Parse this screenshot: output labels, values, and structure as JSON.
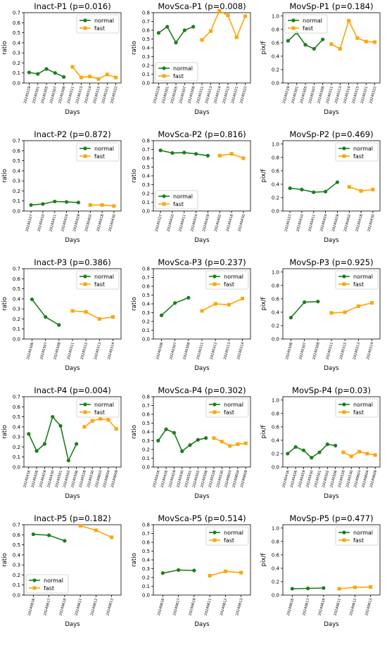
{
  "colors": {
    "normal": "#1a7f1a",
    "fast": "#ffa500",
    "axis": "#000000"
  },
  "chart_data": [
    {
      "type": "line",
      "title": "Inact-P1 (p=0.016)",
      "xlabel": "Days",
      "ylabel": "ratio",
      "ylim": [
        0,
        0.7
      ],
      "yticks": [
        "0.0",
        "0.1",
        "0.2",
        "0.3",
        "0.4",
        "0.5",
        "0.6",
        "0.7"
      ],
      "x": [
        "20240229",
        "20240301",
        "20240305",
        "20240307",
        "20240308",
        "20240311",
        "20240313",
        "20240314",
        "20240315",
        "20240321",
        "20240322"
      ],
      "legend": "top-right",
      "series": [
        {
          "name": "normal",
          "values": [
            0.105,
            0.09,
            0.14,
            0.1,
            0.06,
            null,
            null,
            null,
            null,
            null,
            null
          ]
        },
        {
          "name": "fast",
          "values": [
            null,
            null,
            null,
            null,
            null,
            0.16,
            0.055,
            0.065,
            0.04,
            0.085,
            0.055
          ]
        }
      ]
    },
    {
      "type": "line",
      "title": "MovSca-P1 (p=0.008)",
      "xlabel": "Days",
      "ylabel": "ratio",
      "ylim": [
        0,
        0.8
      ],
      "yticks": [
        "0.0",
        "0.1",
        "0.2",
        "0.3",
        "0.4",
        "0.5",
        "0.6",
        "0.7",
        "0.8"
      ],
      "x": [
        "20240229",
        "20240301",
        "20240305",
        "20240307",
        "20240308",
        "20240311",
        "20240313",
        "20240314",
        "20240315",
        "20240321",
        "20240322"
      ],
      "legend": "bottom-left",
      "series": [
        {
          "name": "normal",
          "values": [
            0.57,
            0.64,
            0.46,
            0.6,
            0.64,
            null,
            null,
            null,
            null,
            null,
            null
          ]
        },
        {
          "name": "fast",
          "values": [
            null,
            null,
            null,
            null,
            null,
            0.49,
            0.59,
            0.82,
            0.77,
            0.52,
            0.76
          ]
        }
      ]
    },
    {
      "type": "line",
      "title": "MovSp-P1 (p=0.184)",
      "xlabel": "Days",
      "ylabel": "pix/f",
      "ylim": [
        0,
        1.05
      ],
      "yticks": [
        "0.0",
        "0.2",
        "0.4",
        "0.6",
        "0.8",
        "1.0"
      ],
      "x": [
        "20240229",
        "20240301",
        "20240305",
        "20240307",
        "20240308",
        "20240311",
        "20240313",
        "20240314",
        "20240315",
        "20240321",
        "20240322"
      ],
      "legend": "top-left",
      "series": [
        {
          "name": "normal",
          "values": [
            0.63,
            0.75,
            0.57,
            0.51,
            0.65,
            null,
            null,
            null,
            null,
            null,
            null
          ]
        },
        {
          "name": "fast",
          "values": [
            null,
            null,
            null,
            null,
            null,
            0.58,
            0.51,
            0.93,
            0.67,
            0.62,
            0.61
          ]
        }
      ]
    },
    {
      "type": "line",
      "title": "Inact-P2 (p=0.872)",
      "xlabel": "Days",
      "ylabel": "ratio",
      "ylim": [
        0,
        0.7
      ],
      "yticks": [
        "0.0",
        "0.1",
        "0.2",
        "0.3",
        "0.4",
        "0.5",
        "0.6",
        "0.7"
      ],
      "x": [
        "20240327",
        "20240410",
        "20240411",
        "20240424",
        "20240429",
        "20240402",
        "20240418",
        "20240430"
      ],
      "legend": "top-right",
      "series": [
        {
          "name": "normal",
          "values": [
            0.06,
            0.07,
            0.095,
            0.09,
            0.085,
            null,
            null,
            null
          ]
        },
        {
          "name": "fast",
          "values": [
            null,
            null,
            null,
            null,
            null,
            0.06,
            0.06,
            0.05
          ]
        }
      ]
    },
    {
      "type": "line",
      "title": "MovSca-P2 (p=0.816)",
      "xlabel": "Days",
      "ylabel": "ratio",
      "ylim": [
        0,
        0.8
      ],
      "yticks": [
        "0.0",
        "0.1",
        "0.2",
        "0.3",
        "0.4",
        "0.5",
        "0.6",
        "0.7",
        "0.8"
      ],
      "x": [
        "20240327",
        "20240410",
        "20240411",
        "20240424",
        "20240429",
        "20240402",
        "20240418",
        "20240430"
      ],
      "legend": "bottom-left",
      "series": [
        {
          "name": "normal",
          "values": [
            0.69,
            0.66,
            0.665,
            0.65,
            0.63,
            null,
            null,
            null
          ]
        },
        {
          "name": "fast",
          "values": [
            null,
            null,
            null,
            null,
            null,
            0.63,
            0.65,
            0.6
          ]
        }
      ]
    },
    {
      "type": "line",
      "title": "MovSp-P2 (p=0.469)",
      "xlabel": "Days",
      "ylabel": "pix/f",
      "ylim": [
        0,
        1.05
      ],
      "yticks": [
        "0.0",
        "0.2",
        "0.4",
        "0.6",
        "0.8",
        "1.0"
      ],
      "x": [
        "20240327",
        "20240410",
        "20240411",
        "20240424",
        "20240429",
        "20240402",
        "20240418",
        "20240430"
      ],
      "legend": "top-right",
      "series": [
        {
          "name": "normal",
          "values": [
            0.34,
            0.32,
            0.28,
            0.29,
            0.43,
            null,
            null,
            null
          ]
        },
        {
          "name": "fast",
          "values": [
            null,
            null,
            null,
            null,
            null,
            0.36,
            0.3,
            0.32
          ]
        }
      ]
    },
    {
      "type": "line",
      "title": "Inact-P3 (p=0.386)",
      "xlabel": "Days",
      "ylabel": "ratio",
      "ylim": [
        0,
        0.7
      ],
      "yticks": [
        "0.0",
        "0.1",
        "0.2",
        "0.3",
        "0.4",
        "0.5",
        "0.6",
        "0.7"
      ],
      "x": [
        "20240306",
        "20240307",
        "20240308",
        "20240311",
        "20240312",
        "20240313",
        "20240314"
      ],
      "legend": "top-right",
      "series": [
        {
          "name": "normal",
          "values": [
            0.395,
            0.22,
            0.14,
            null,
            null,
            null,
            null
          ]
        },
        {
          "name": "fast",
          "values": [
            null,
            null,
            null,
            0.28,
            0.27,
            0.2,
            0.22
          ]
        }
      ]
    },
    {
      "type": "line",
      "title": "MovSca-P3 (p=0.237)",
      "xlabel": "Days",
      "ylabel": "ratio",
      "ylim": [
        0,
        0.8
      ],
      "yticks": [
        "0.0",
        "0.1",
        "0.2",
        "0.3",
        "0.4",
        "0.5",
        "0.6",
        "0.7",
        "0.8"
      ],
      "x": [
        "20240306",
        "20240307",
        "20240308",
        "20240311",
        "20240312",
        "20240313",
        "20240314"
      ],
      "legend": "top-right",
      "series": [
        {
          "name": "normal",
          "values": [
            0.27,
            0.41,
            0.47,
            null,
            null,
            null,
            null
          ]
        },
        {
          "name": "fast",
          "values": [
            null,
            null,
            null,
            0.32,
            0.4,
            0.39,
            0.46
          ]
        }
      ]
    },
    {
      "type": "line",
      "title": "MovSp-P3 (p=0.925)",
      "xlabel": "Days",
      "ylabel": "pix/f",
      "ylim": [
        0,
        1.05
      ],
      "yticks": [
        "0.0",
        "0.2",
        "0.4",
        "0.6",
        "0.8",
        "1.0"
      ],
      "x": [
        "20240306",
        "20240307",
        "20240308",
        "20240311",
        "20240312",
        "20240313",
        "20240314"
      ],
      "legend": "top-right",
      "series": [
        {
          "name": "normal",
          "values": [
            0.32,
            0.55,
            0.56,
            null,
            null,
            null,
            null
          ]
        },
        {
          "name": "fast",
          "values": [
            null,
            null,
            null,
            0.39,
            0.4,
            0.49,
            0.54
          ]
        }
      ]
    },
    {
      "type": "line",
      "title": "Inact-P4 (p=0.004)",
      "xlabel": "Days",
      "ylabel": "ratio",
      "ylim": [
        0,
        0.7
      ],
      "yticks": [
        "0.0",
        "0.1",
        "0.2",
        "0.3",
        "0.4",
        "0.5",
        "0.6",
        "0.7"
      ],
      "x": [
        "20240416",
        "20240426",
        "20240429",
        "20240430",
        "20240501",
        "20240502",
        "20240506",
        "20240528",
        "20240530",
        "20240603",
        "20240604",
        "20240609"
      ],
      "legend": "top-right",
      "series": [
        {
          "name": "normal",
          "values": [
            0.33,
            0.16,
            0.23,
            0.5,
            0.41,
            0.065,
            0.23,
            null,
            null,
            null,
            null,
            null
          ]
        },
        {
          "name": "fast",
          "values": [
            null,
            null,
            null,
            null,
            null,
            null,
            null,
            0.4,
            0.46,
            0.48,
            0.47,
            0.38
          ]
        }
      ]
    },
    {
      "type": "line",
      "title": "MovSca-P4 (p=0.302)",
      "xlabel": "Days",
      "ylabel": "ratio",
      "ylim": [
        0,
        0.8
      ],
      "yticks": [
        "0.0",
        "0.1",
        "0.2",
        "0.3",
        "0.4",
        "0.5",
        "0.6",
        "0.7",
        "0.8"
      ],
      "x": [
        "20240416",
        "20240426",
        "20240429",
        "20240430",
        "20240501",
        "20240502",
        "20240506",
        "20240528",
        "20240530",
        "20240603",
        "20240604",
        "20240609"
      ],
      "legend": "top-right",
      "series": [
        {
          "name": "normal",
          "values": [
            0.3,
            0.43,
            0.39,
            0.18,
            0.25,
            0.31,
            0.33,
            null,
            null,
            null,
            null,
            null
          ]
        },
        {
          "name": "fast",
          "values": [
            null,
            null,
            null,
            null,
            null,
            null,
            null,
            0.33,
            0.29,
            0.24,
            0.26,
            0.27
          ]
        }
      ]
    },
    {
      "type": "line",
      "title": "MovSp-P4 (p=0.03)",
      "xlabel": "Days",
      "ylabel": "pix/f",
      "ylim": [
        0,
        1.05
      ],
      "yticks": [
        "0.0",
        "0.2",
        "0.4",
        "0.6",
        "0.8",
        "1.0"
      ],
      "x": [
        "20240416",
        "20240426",
        "20240429",
        "20240430",
        "20240501",
        "20240502",
        "20240506",
        "20240528",
        "20240530",
        "20240603",
        "20240604",
        "20240609"
      ],
      "legend": "top-right",
      "series": [
        {
          "name": "normal",
          "values": [
            0.2,
            0.3,
            0.25,
            0.14,
            0.22,
            0.34,
            0.32,
            null,
            null,
            null,
            null,
            null
          ]
        },
        {
          "name": "fast",
          "values": [
            null,
            null,
            null,
            null,
            null,
            null,
            null,
            0.22,
            0.16,
            0.23,
            0.2,
            0.18
          ]
        }
      ]
    },
    {
      "type": "line",
      "title": "Inact-P5 (p=0.182)",
      "xlabel": "Days",
      "ylabel": "ratio",
      "ylim": [
        0,
        0.7
      ],
      "yticks": [
        "0.0",
        "0.1",
        "0.2",
        "0.3",
        "0.4",
        "0.5",
        "0.6",
        "0.7"
      ],
      "x": [
        "20240616",
        "20240617",
        "20240618",
        "20240611",
        "20240612",
        "20240613"
      ],
      "legend": "bottom-left",
      "series": [
        {
          "name": "normal",
          "values": [
            0.605,
            0.595,
            0.54,
            null,
            null,
            null
          ]
        },
        {
          "name": "fast",
          "values": [
            null,
            null,
            null,
            0.69,
            0.645,
            0.575
          ]
        }
      ]
    },
    {
      "type": "line",
      "title": "MovSca-P5 (p=0.514)",
      "xlabel": "Days",
      "ylabel": "ratio",
      "ylim": [
        0,
        0.8
      ],
      "yticks": [
        "0.0",
        "0.1",
        "0.2",
        "0.3",
        "0.4",
        "0.5",
        "0.6",
        "0.7",
        "0.8"
      ],
      "x": [
        "20240616",
        "20240617",
        "20240619",
        "20240611",
        "20240612",
        "20240613"
      ],
      "legend": "top-right",
      "series": [
        {
          "name": "normal",
          "values": [
            0.25,
            0.285,
            0.28,
            null,
            null,
            null
          ]
        },
        {
          "name": "fast",
          "values": [
            null,
            null,
            null,
            0.22,
            0.27,
            0.255
          ]
        }
      ]
    },
    {
      "type": "line",
      "title": "MovSp-P5 (p=0.477)",
      "xlabel": "Days",
      "ylabel": "pix/f",
      "ylim": [
        0,
        1.05
      ],
      "yticks": [
        "0.0",
        "0.2",
        "0.4",
        "0.6",
        "0.8",
        "1.0"
      ],
      "x": [
        "20240616",
        "20240617",
        "20240618",
        "20240611",
        "20240612",
        "20240613"
      ],
      "legend": "top-right",
      "series": [
        {
          "name": "normal",
          "values": [
            0.095,
            0.1,
            0.105,
            null,
            null,
            null
          ]
        },
        {
          "name": "fast",
          "values": [
            null,
            null,
            null,
            0.095,
            0.115,
            0.12
          ]
        }
      ]
    }
  ]
}
